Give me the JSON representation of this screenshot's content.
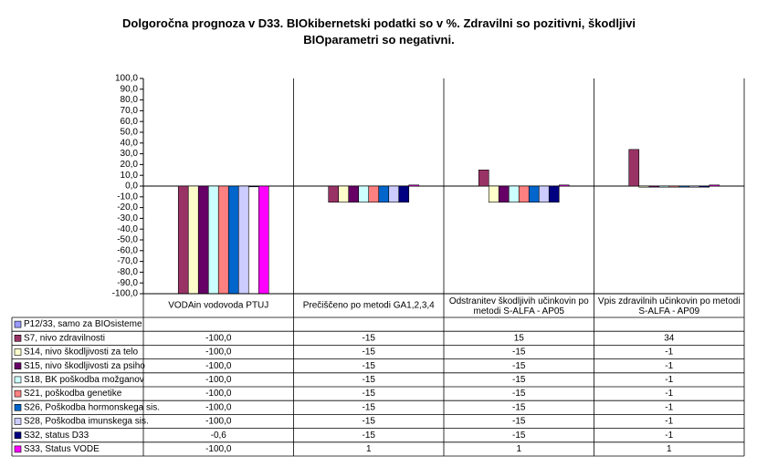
{
  "chart_data": {
    "type": "bar",
    "title": "Dolgoročna prognoza v D33. BIOkibernetski podatki so v %. Zdravilni so pozitivni, škodljivi BIOparametri so negativni.",
    "categories": [
      "VODAin vodovoda PTUJ",
      "Prečiščeno po metodi GA1,2,3,4",
      "Odstranitev škodljivih učinkovin po metodi S-ALFA - AP05",
      "Vpis zdravilnih učinkovin po metodi S-ALFA - AP09"
    ],
    "series": [
      {
        "name": "P12/33, samo za BIOsisteme",
        "color": "#9999ff",
        "values": [
          null,
          null,
          null,
          null
        ],
        "value_labels": [
          null,
          null,
          null,
          null
        ]
      },
      {
        "name": "S7, nivo zdravilnosti",
        "color": "#993366",
        "values": [
          -100,
          -15,
          15,
          34
        ],
        "value_labels": [
          "-100,0",
          "-15",
          "15",
          "34"
        ]
      },
      {
        "name": "S14, nivo škodljivosti za telo",
        "color": "#ffffcc",
        "values": [
          -100,
          -15,
          -15,
          -1
        ],
        "value_labels": [
          "-100,0",
          "-15",
          "-15",
          "-1"
        ]
      },
      {
        "name": "S15, nivo škodljivosti za psiho",
        "color": "#660066",
        "values": [
          -100,
          -15,
          -15,
          -1
        ],
        "value_labels": [
          "-100,0",
          "-15",
          "-15",
          "-1"
        ]
      },
      {
        "name": "S18, BK poškodba možganov",
        "color": "#ccffff",
        "values": [
          -100,
          -15,
          -15,
          -1
        ],
        "value_labels": [
          "-100,0",
          "-15",
          "-15",
          "-1"
        ]
      },
      {
        "name": "S21, poškodba genetike",
        "color": "#ff8080",
        "values": [
          -100,
          -15,
          -15,
          -1
        ],
        "value_labels": [
          "-100,0",
          "-15",
          "-15",
          "-1"
        ]
      },
      {
        "name": "S26, Poškodba hormonskega sis.",
        "color": "#0066cc",
        "values": [
          -100,
          -15,
          -15,
          -1
        ],
        "value_labels": [
          "-100,0",
          "-15",
          "-15",
          "-1"
        ]
      },
      {
        "name": "S28, Poškodba imunskega sis.",
        "color": "#ccccff",
        "values": [
          -100,
          -15,
          -15,
          -1
        ],
        "value_labels": [
          "-100,0",
          "-15",
          "-15",
          "-1"
        ]
      },
      {
        "name": "S32, status D33",
        "color": "#000080",
        "values": [
          -0.6,
          -15,
          -15,
          -1
        ],
        "value_labels": [
          "-0,6",
          "-15",
          "-15",
          "-1"
        ]
      },
      {
        "name": "S33, Status VODE",
        "color": "#ff00ff",
        "values": [
          -100,
          1,
          1,
          1
        ],
        "value_labels": [
          "-100,0",
          "1",
          "1",
          "1"
        ]
      }
    ],
    "ylim": [
      -100,
      100
    ],
    "yticks": [
      {
        "value": 100,
        "label": "100,0"
      },
      {
        "value": 90,
        "label": "90,0"
      },
      {
        "value": 80,
        "label": "80,0"
      },
      {
        "value": 70,
        "label": "70,0"
      },
      {
        "value": 60,
        "label": "60,0"
      },
      {
        "value": 50,
        "label": "50,0"
      },
      {
        "value": 40,
        "label": "40,0"
      },
      {
        "value": 30,
        "label": "30,0"
      },
      {
        "value": 20,
        "label": "20,0"
      },
      {
        "value": 10,
        "label": "10,0"
      },
      {
        "value": 0,
        "label": "0,0"
      },
      {
        "value": -10,
        "label": "-10,0"
      },
      {
        "value": -20,
        "label": "-20,0"
      },
      {
        "value": -30,
        "label": "-30,0"
      },
      {
        "value": -40,
        "label": "-40,0"
      },
      {
        "value": -50,
        "label": "-50,0"
      },
      {
        "value": -60,
        "label": "-60,0"
      },
      {
        "value": -70,
        "label": "-70,0"
      },
      {
        "value": -80,
        "label": "-80,0"
      },
      {
        "value": -90,
        "label": "-90,0"
      },
      {
        "value": -100,
        "label": "-100,0"
      }
    ],
    "grid": false
  }
}
